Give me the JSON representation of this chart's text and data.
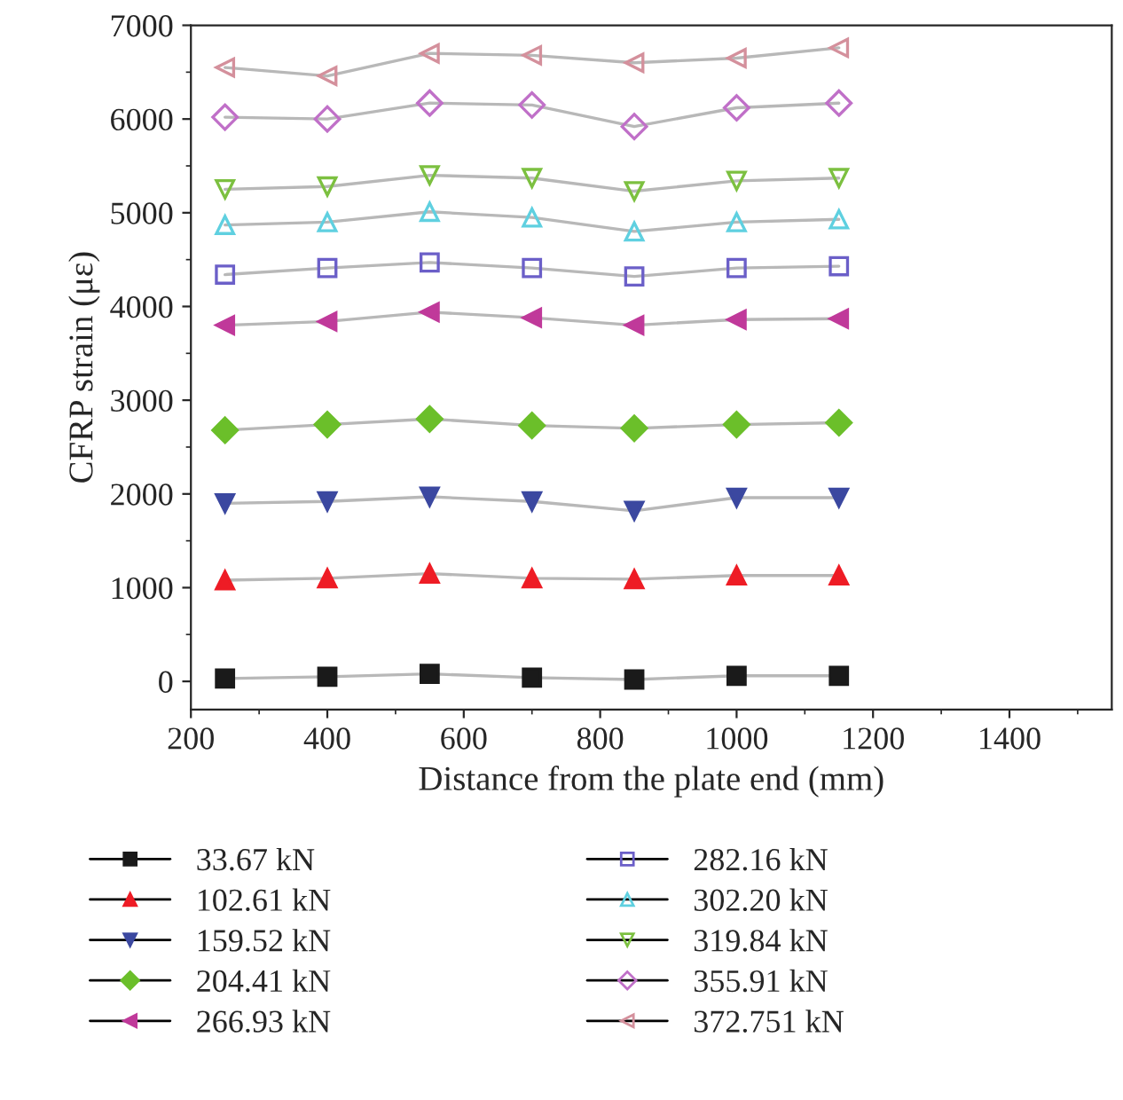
{
  "chart_data": {
    "type": "line",
    "xlabel": "Distance from the plate end (mm)",
    "ylabel": "CFRP strain (με)",
    "xlim": [
      200,
      1550
    ],
    "xticks": [
      200,
      400,
      600,
      800,
      1000,
      1200,
      1400
    ],
    "ylim": [
      -300,
      7000
    ],
    "yticks": [
      0,
      1000,
      2000,
      3000,
      4000,
      5000,
      6000,
      7000
    ],
    "x": [
      250,
      400,
      550,
      700,
      850,
      1000,
      1150
    ],
    "grid": false,
    "legend": "bottom",
    "series": [
      {
        "name": "33.67 kN",
        "color": "#1a1a1a",
        "marker": "square",
        "values": [
          30,
          50,
          80,
          40,
          20,
          60,
          60
        ]
      },
      {
        "name": "102.61 kN",
        "color": "#ee1c25",
        "marker": "triangle",
        "values": [
          1080,
          1100,
          1150,
          1100,
          1090,
          1130,
          1130
        ]
      },
      {
        "name": "159.52 kN",
        "color": "#3b48a0",
        "marker": "triangle-down",
        "values": [
          1900,
          1920,
          1970,
          1920,
          1820,
          1960,
          1960
        ]
      },
      {
        "name": "204.41 kN",
        "color": "#6bbf2a",
        "marker": "diamond",
        "values": [
          2680,
          2740,
          2800,
          2730,
          2700,
          2740,
          2760
        ]
      },
      {
        "name": "266.93 kN",
        "color": "#c0399a",
        "marker": "triangle-left",
        "values": [
          3800,
          3840,
          3940,
          3880,
          3800,
          3860,
          3870
        ]
      },
      {
        "name": "282.16 kN",
        "color": "#6b5fc8",
        "marker": "square-open",
        "values": [
          4340,
          4410,
          4470,
          4410,
          4320,
          4410,
          4430
        ]
      },
      {
        "name": "302.20 kN",
        "color": "#5fd0e0",
        "marker": "triangle-open",
        "values": [
          4870,
          4900,
          5010,
          4950,
          4800,
          4900,
          4930
        ]
      },
      {
        "name": "319.84 kN",
        "color": "#7cc040",
        "marker": "triangle-down-open",
        "values": [
          5250,
          5280,
          5400,
          5370,
          5230,
          5340,
          5370
        ]
      },
      {
        "name": "355.91 kN",
        "color": "#c070c8",
        "marker": "diamond-open",
        "values": [
          6020,
          6000,
          6170,
          6150,
          5920,
          6120,
          6170
        ]
      },
      {
        "name": "372.751 kN",
        "color": "#d4909c",
        "marker": "triangle-left-open",
        "values": [
          6550,
          6460,
          6700,
          6680,
          6600,
          6650,
          6760
        ]
      }
    ]
  }
}
